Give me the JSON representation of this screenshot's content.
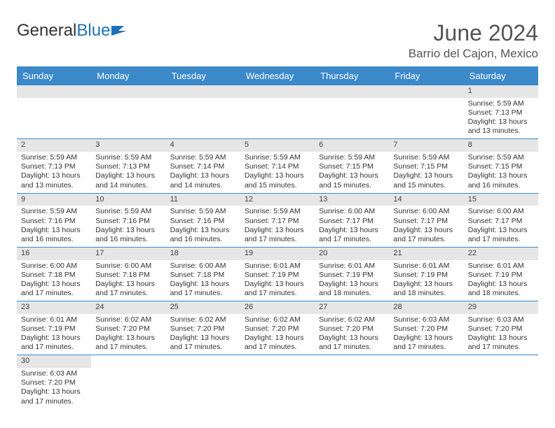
{
  "brand": {
    "part1": "General",
    "part2": "Blue"
  },
  "title": "June 2024",
  "location": "Barrio del Cajon, Mexico",
  "dayNames": [
    "Sunday",
    "Monday",
    "Tuesday",
    "Wednesday",
    "Thursday",
    "Friday",
    "Saturday"
  ],
  "colors": {
    "headerBg": "#3b89c9",
    "headerText": "#ffffff",
    "daynumBg": "#e6e6e6",
    "cellBorder": "#3b89c9",
    "text": "#333333",
    "titleText": "#555555",
    "logoBlue": "#2072b8"
  },
  "weeks": [
    [
      {
        "empty": true
      },
      {
        "empty": true
      },
      {
        "empty": true
      },
      {
        "empty": true
      },
      {
        "empty": true
      },
      {
        "empty": true
      },
      {
        "day": "1",
        "sunrise": "Sunrise: 5:59 AM",
        "sunset": "Sunset: 7:13 PM",
        "daylight": "Daylight: 13 hours and 13 minutes."
      }
    ],
    [
      {
        "day": "2",
        "sunrise": "Sunrise: 5:59 AM",
        "sunset": "Sunset: 7:13 PM",
        "daylight": "Daylight: 13 hours and 13 minutes."
      },
      {
        "day": "3",
        "sunrise": "Sunrise: 5:59 AM",
        "sunset": "Sunset: 7:13 PM",
        "daylight": "Daylight: 13 hours and 14 minutes."
      },
      {
        "day": "4",
        "sunrise": "Sunrise: 5:59 AM",
        "sunset": "Sunset: 7:14 PM",
        "daylight": "Daylight: 13 hours and 14 minutes."
      },
      {
        "day": "5",
        "sunrise": "Sunrise: 5:59 AM",
        "sunset": "Sunset: 7:14 PM",
        "daylight": "Daylight: 13 hours and 15 minutes."
      },
      {
        "day": "6",
        "sunrise": "Sunrise: 5:59 AM",
        "sunset": "Sunset: 7:15 PM",
        "daylight": "Daylight: 13 hours and 15 minutes."
      },
      {
        "day": "7",
        "sunrise": "Sunrise: 5:59 AM",
        "sunset": "Sunset: 7:15 PM",
        "daylight": "Daylight: 13 hours and 15 minutes."
      },
      {
        "day": "8",
        "sunrise": "Sunrise: 5:59 AM",
        "sunset": "Sunset: 7:15 PM",
        "daylight": "Daylight: 13 hours and 16 minutes."
      }
    ],
    [
      {
        "day": "9",
        "sunrise": "Sunrise: 5:59 AM",
        "sunset": "Sunset: 7:16 PM",
        "daylight": "Daylight: 13 hours and 16 minutes."
      },
      {
        "day": "10",
        "sunrise": "Sunrise: 5:59 AM",
        "sunset": "Sunset: 7:16 PM",
        "daylight": "Daylight: 13 hours and 16 minutes."
      },
      {
        "day": "11",
        "sunrise": "Sunrise: 5:59 AM",
        "sunset": "Sunset: 7:16 PM",
        "daylight": "Daylight: 13 hours and 16 minutes."
      },
      {
        "day": "12",
        "sunrise": "Sunrise: 5:59 AM",
        "sunset": "Sunset: 7:17 PM",
        "daylight": "Daylight: 13 hours and 17 minutes."
      },
      {
        "day": "13",
        "sunrise": "Sunrise: 6:00 AM",
        "sunset": "Sunset: 7:17 PM",
        "daylight": "Daylight: 13 hours and 17 minutes."
      },
      {
        "day": "14",
        "sunrise": "Sunrise: 6:00 AM",
        "sunset": "Sunset: 7:17 PM",
        "daylight": "Daylight: 13 hours and 17 minutes."
      },
      {
        "day": "15",
        "sunrise": "Sunrise: 6:00 AM",
        "sunset": "Sunset: 7:17 PM",
        "daylight": "Daylight: 13 hours and 17 minutes."
      }
    ],
    [
      {
        "day": "16",
        "sunrise": "Sunrise: 6:00 AM",
        "sunset": "Sunset: 7:18 PM",
        "daylight": "Daylight: 13 hours and 17 minutes."
      },
      {
        "day": "17",
        "sunrise": "Sunrise: 6:00 AM",
        "sunset": "Sunset: 7:18 PM",
        "daylight": "Daylight: 13 hours and 17 minutes."
      },
      {
        "day": "18",
        "sunrise": "Sunrise: 6:00 AM",
        "sunset": "Sunset: 7:18 PM",
        "daylight": "Daylight: 13 hours and 17 minutes."
      },
      {
        "day": "19",
        "sunrise": "Sunrise: 6:01 AM",
        "sunset": "Sunset: 7:19 PM",
        "daylight": "Daylight: 13 hours and 17 minutes."
      },
      {
        "day": "20",
        "sunrise": "Sunrise: 6:01 AM",
        "sunset": "Sunset: 7:19 PM",
        "daylight": "Daylight: 13 hours and 18 minutes."
      },
      {
        "day": "21",
        "sunrise": "Sunrise: 6:01 AM",
        "sunset": "Sunset: 7:19 PM",
        "daylight": "Daylight: 13 hours and 18 minutes."
      },
      {
        "day": "22",
        "sunrise": "Sunrise: 6:01 AM",
        "sunset": "Sunset: 7:19 PM",
        "daylight": "Daylight: 13 hours and 18 minutes."
      }
    ],
    [
      {
        "day": "23",
        "sunrise": "Sunrise: 6:01 AM",
        "sunset": "Sunset: 7:19 PM",
        "daylight": "Daylight: 13 hours and 17 minutes."
      },
      {
        "day": "24",
        "sunrise": "Sunrise: 6:02 AM",
        "sunset": "Sunset: 7:20 PM",
        "daylight": "Daylight: 13 hours and 17 minutes."
      },
      {
        "day": "25",
        "sunrise": "Sunrise: 6:02 AM",
        "sunset": "Sunset: 7:20 PM",
        "daylight": "Daylight: 13 hours and 17 minutes."
      },
      {
        "day": "26",
        "sunrise": "Sunrise: 6:02 AM",
        "sunset": "Sunset: 7:20 PM",
        "daylight": "Daylight: 13 hours and 17 minutes."
      },
      {
        "day": "27",
        "sunrise": "Sunrise: 6:02 AM",
        "sunset": "Sunset: 7:20 PM",
        "daylight": "Daylight: 13 hours and 17 minutes."
      },
      {
        "day": "28",
        "sunrise": "Sunrise: 6:03 AM",
        "sunset": "Sunset: 7:20 PM",
        "daylight": "Daylight: 13 hours and 17 minutes."
      },
      {
        "day": "29",
        "sunrise": "Sunrise: 6:03 AM",
        "sunset": "Sunset: 7:20 PM",
        "daylight": "Daylight: 13 hours and 17 minutes."
      }
    ],
    [
      {
        "day": "30",
        "sunrise": "Sunrise: 6:03 AM",
        "sunset": "Sunset: 7:20 PM",
        "daylight": "Daylight: 13 hours and 17 minutes.",
        "noBorder": true
      },
      {
        "empty": true,
        "noBorder": true
      },
      {
        "empty": true,
        "noBorder": true
      },
      {
        "empty": true,
        "noBorder": true
      },
      {
        "empty": true,
        "noBorder": true
      },
      {
        "empty": true,
        "noBorder": true
      },
      {
        "empty": true,
        "noBorder": true
      }
    ]
  ]
}
